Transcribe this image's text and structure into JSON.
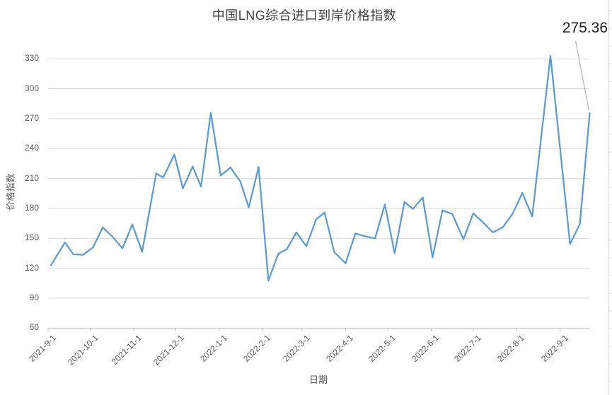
{
  "title": "中国LNG综合进口到岸价格指数",
  "annotation": {
    "label": "275.36"
  },
  "colors": {
    "line": "#5B9BD5",
    "gridline": "#D9D9D9",
    "axis_line": "#BFBFBF",
    "tick_text": "#595959",
    "title_text": "#404040",
    "annotation_text": "#1F1F1F",
    "leader_line": "#A6A6A6"
  },
  "chart_data": {
    "type": "line",
    "title": "中国LNG综合进口到岸价格指数",
    "xlabel": "日期",
    "ylabel": "价格指数",
    "ylim": [
      60,
      330
    ],
    "y_ticks": [
      60,
      90,
      120,
      150,
      180,
      210,
      240,
      270,
      300,
      330
    ],
    "x_ticks": [
      "2021-9-1",
      "2021-10-1",
      "2021-11-1",
      "2021-12-1",
      "2022-1-1",
      "2022-2-1",
      "2022-3-1",
      "2022-4-1",
      "2022-5-1",
      "2022-6-1",
      "2022-7-1",
      "2022-8-1",
      "2022-9-1"
    ],
    "grid": "horizontal",
    "legend": "none",
    "annotation": {
      "text": "275.36",
      "point_date": "2022-9-22",
      "value": 275.36
    },
    "series": [
      {
        "name": "中国LNG综合进口到岸价格指数",
        "color": "#5B9BD5",
        "points": [
          {
            "date": "2021-9-3",
            "value": 123
          },
          {
            "date": "2021-9-13",
            "value": 146
          },
          {
            "date": "2021-9-19",
            "value": 134
          },
          {
            "date": "2021-9-26",
            "value": 133.5
          },
          {
            "date": "2021-10-3",
            "value": 141
          },
          {
            "date": "2021-10-10",
            "value": 161
          },
          {
            "date": "2021-10-17",
            "value": 151.5
          },
          {
            "date": "2021-10-24",
            "value": 140
          },
          {
            "date": "2021-10-31",
            "value": 164
          },
          {
            "date": "2021-11-7",
            "value": 136.5
          },
          {
            "date": "2021-11-17",
            "value": 215
          },
          {
            "date": "2021-11-22",
            "value": 211
          },
          {
            "date": "2021-11-30",
            "value": 234
          },
          {
            "date": "2021-12-6",
            "value": 200
          },
          {
            "date": "2021-12-13",
            "value": 222
          },
          {
            "date": "2021-12-19",
            "value": 202
          },
          {
            "date": "2021-12-26",
            "value": 276
          },
          {
            "date": "2022-1-2",
            "value": 213
          },
          {
            "date": "2022-1-9",
            "value": 221
          },
          {
            "date": "2022-1-16",
            "value": 207
          },
          {
            "date": "2022-1-22",
            "value": 181
          },
          {
            "date": "2022-1-29",
            "value": 221.5
          },
          {
            "date": "2022-2-5",
            "value": 107.7
          },
          {
            "date": "2022-2-12",
            "value": 134.5
          },
          {
            "date": "2022-2-18",
            "value": 139
          },
          {
            "date": "2022-2-25",
            "value": 156
          },
          {
            "date": "2022-3-4",
            "value": 142
          },
          {
            "date": "2022-3-11",
            "value": 169
          },
          {
            "date": "2022-3-17",
            "value": 176
          },
          {
            "date": "2022-3-24",
            "value": 136
          },
          {
            "date": "2022-4-1",
            "value": 125
          },
          {
            "date": "2022-4-8",
            "value": 155
          },
          {
            "date": "2022-4-15",
            "value": 152
          },
          {
            "date": "2022-4-22",
            "value": 150
          },
          {
            "date": "2022-4-29",
            "value": 184
          },
          {
            "date": "2022-5-6",
            "value": 135
          },
          {
            "date": "2022-5-13",
            "value": 186.5
          },
          {
            "date": "2022-5-19",
            "value": 179.5
          },
          {
            "date": "2022-5-26",
            "value": 191
          },
          {
            "date": "2022-6-2",
            "value": 131
          },
          {
            "date": "2022-6-9",
            "value": 178
          },
          {
            "date": "2022-6-16",
            "value": 174.5
          },
          {
            "date": "2022-6-24",
            "value": 149
          },
          {
            "date": "2022-7-1",
            "value": 175
          },
          {
            "date": "2022-7-8",
            "value": 166
          },
          {
            "date": "2022-7-15",
            "value": 156
          },
          {
            "date": "2022-7-22",
            "value": 161
          },
          {
            "date": "2022-7-29",
            "value": 174.5
          },
          {
            "date": "2022-8-5",
            "value": 195.5
          },
          {
            "date": "2022-8-12",
            "value": 172
          },
          {
            "date": "2022-8-25",
            "value": 333
          },
          {
            "date": "2022-9-8",
            "value": 144.4
          },
          {
            "date": "2022-9-15",
            "value": 164.5
          },
          {
            "date": "2022-9-22",
            "value": 275.36
          }
        ]
      }
    ]
  }
}
